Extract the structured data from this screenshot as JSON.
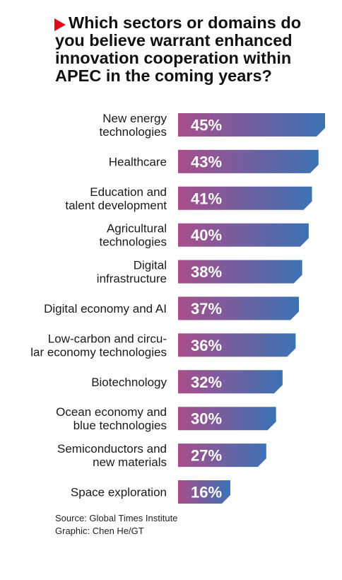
{
  "chart_data": {
    "type": "bar",
    "orientation": "horizontal",
    "title": "Which sectors or domains do you believe warrant enhanced innovation cooperation within APEC in the coming years?",
    "categories": [
      [
        "New energy",
        "technologies"
      ],
      [
        "Healthcare"
      ],
      [
        "Education and",
        "talent development"
      ],
      [
        "Agricultural",
        "technologies"
      ],
      [
        "Digital",
        "infrastructure"
      ],
      [
        "Digital economy and AI"
      ],
      [
        "Low-carbon and circu-",
        "lar economy technologies"
      ],
      [
        "Biotechnology"
      ],
      [
        "Ocean economy and",
        "blue technologies"
      ],
      [
        "Semiconductors and",
        "new materials"
      ],
      [
        "Space exploration"
      ]
    ],
    "values": [
      45,
      43,
      41,
      40,
      38,
      37,
      36,
      32,
      30,
      27,
      16
    ],
    "value_labels": [
      "45%",
      "43%",
      "41%",
      "40%",
      "38%",
      "37%",
      "36%",
      "32%",
      "30%",
      "27%",
      "16%"
    ],
    "unit": "%",
    "xlim": [
      0,
      45
    ],
    "grid": false,
    "legend": "none",
    "colors": {
      "bar_start": "#a84e8b",
      "bar_end": "#3c72b4",
      "title_marker": "#e10b1d"
    }
  },
  "footer": {
    "source": "Source: Global Times Institute",
    "graphic": "Graphic: Chen He/GT"
  }
}
